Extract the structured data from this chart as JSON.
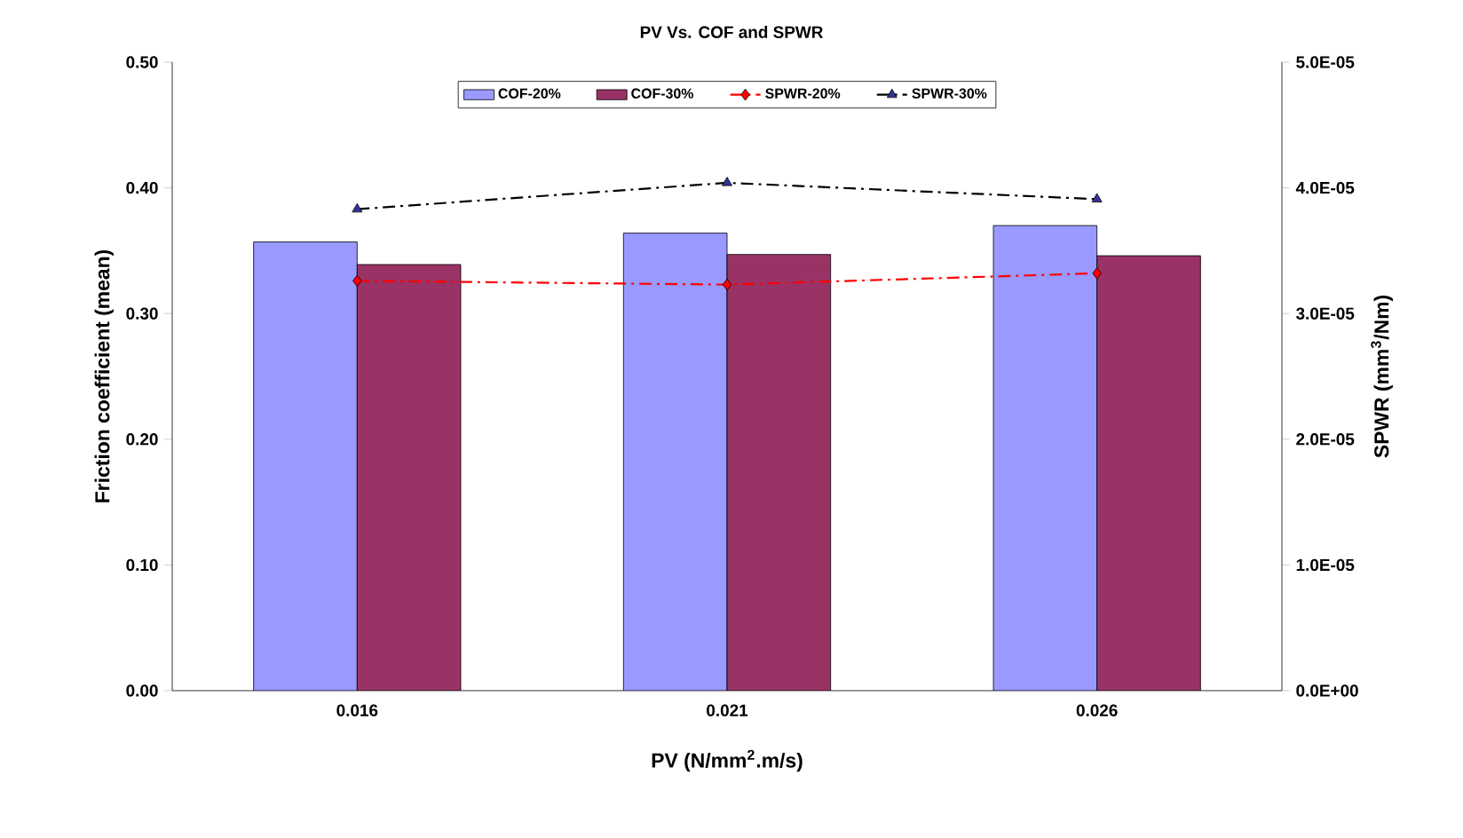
{
  "chart_data": {
    "type": "bar",
    "title": "PV Vs. COF and SPWR",
    "xlabel": "PV (N/mm$^{2}$.m/s)",
    "ylabel": "Friction coefficient (mean)",
    "y2label": "SPWR (mm$^{3}$/Nm)",
    "categories": [
      "0.016",
      "0.021",
      "0.026"
    ],
    "series": [
      {
        "name": "COF-20%",
        "color": "#9999ff",
        "values": [
          0.357,
          0.364,
          0.37
        ]
      },
      {
        "name": "COF-30%",
        "color": "#993366",
        "values": [
          0.339,
          0.347,
          0.346
        ]
      },
      {
        "name": "SPWR-20%",
        "type": "line",
        "axis": "y2",
        "color": "#ff0000",
        "marker": "diamond",
        "line_style": "dashed",
        "values": [
          3.26e-05,
          3.23e-05,
          3.32e-05
        ]
      },
      {
        "name": "SPWR-30%",
        "type": "line",
        "axis": "y2",
        "color": "#000000",
        "marker": "triangle",
        "line_style": "dashed",
        "values": [
          3.83e-05,
          4.04e-05,
          3.91e-05
        ]
      }
    ],
    "ylim": [
      0,
      0.5
    ],
    "yticks": [
      {
        "value": 0,
        "label": "0.00"
      },
      {
        "value": 0.1,
        "label": "0.10"
      },
      {
        "value": 0.2,
        "label": "0.20"
      },
      {
        "value": 0.3,
        "label": "0.30"
      },
      {
        "value": 0.4,
        "label": "0.40"
      },
      {
        "value": 0.5,
        "label": "0.50"
      }
    ],
    "y2lim": [
      0,
      5e-05
    ],
    "y2ticks": [
      {
        "value": 0,
        "label": "0.0E+00"
      },
      {
        "value": 1e-05,
        "label": "1.0E-05"
      },
      {
        "value": 2e-05,
        "label": "2.0E-05"
      },
      {
        "value": 3e-05,
        "label": "3.0E-05"
      },
      {
        "value": 4e-05,
        "label": "4.0E-05"
      },
      {
        "value": 5e-05,
        "label": "5.0E-05"
      }
    ],
    "legend": "top"
  }
}
